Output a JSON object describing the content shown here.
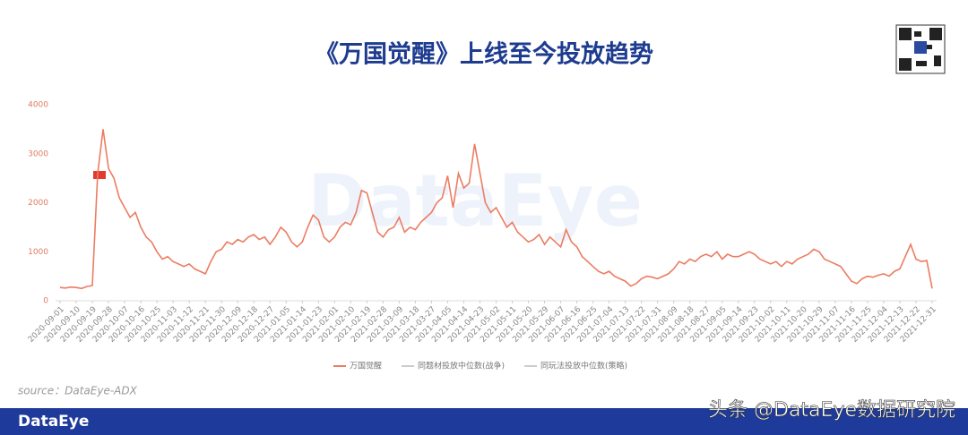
{
  "header": {
    "title": "《万国觉醒》上线至今投放趋势"
  },
  "chart_data": {
    "type": "line",
    "categories": [
      "2020-09-01",
      null,
      null,
      "2020-09-10",
      null,
      null,
      "2020-09-19",
      null,
      null,
      "2020-09-28",
      null,
      null,
      "2020-10-07",
      null,
      null,
      "2020-10-16",
      null,
      null,
      "2020-10-25",
      null,
      null,
      "2020-11-03",
      null,
      null,
      "2020-11-12",
      null,
      null,
      "2020-11-21",
      null,
      null,
      "2020-11-30",
      null,
      null,
      "2020-12-09",
      null,
      null,
      "2020-12-18",
      null,
      null,
      "2020-12-27",
      null,
      null,
      "2021-01-05",
      null,
      null,
      "2021-01-14",
      null,
      null,
      "2021-01-23",
      null,
      null,
      "2021-02-01",
      null,
      null,
      "2021-02-10",
      null,
      null,
      "2021-02-19",
      null,
      null,
      "2021-02-28",
      null,
      null,
      "2021-03-09",
      null,
      null,
      "2021-03-18",
      null,
      null,
      "2021-03-27",
      null,
      null,
      "2021-04-05",
      null,
      null,
      "2021-04-14",
      null,
      null,
      "2021-04-23",
      null,
      null,
      "2021-05-02",
      null,
      null,
      "2021-05-11",
      null,
      null,
      "2021-05-20",
      null,
      null,
      "2021-05-29",
      null,
      null,
      "2021-06-07",
      null,
      null,
      "2021-06-16",
      null,
      null,
      "2021-06-25",
      null,
      null,
      "2021-07-04",
      null,
      null,
      "2021-07-13",
      null,
      null,
      "2021-07-22",
      null,
      null,
      "2021-07-31",
      null,
      null,
      "2021-08-09",
      null,
      null,
      "2021-08-18",
      null,
      null,
      "2021-08-27",
      null,
      null,
      "2021-09-05",
      null,
      null,
      "2021-09-14",
      null,
      null,
      "2021-09-23",
      null,
      null,
      "2021-10-02",
      null,
      null,
      "2021-10-11",
      null,
      null,
      "2021-10-20",
      null,
      null,
      "2021-10-29",
      null,
      null,
      "2021-11-07",
      null,
      null,
      "2021-11-16",
      null,
      null,
      "2021-11-25",
      null,
      null,
      "2021-12-04",
      null,
      null,
      "2021-12-13",
      null,
      null,
      "2021-12-22",
      null,
      null,
      "2021-12-31"
    ],
    "series": [
      {
        "name": "万国觉醒",
        "color": "#ec7c62",
        "values": [
          270,
          260,
          280,
          270,
          250,
          290,
          310,
          2600,
          3500,
          2700,
          2500,
          2100,
          1900,
          1700,
          1800,
          1500,
          1300,
          1200,
          1000,
          850,
          900,
          800,
          750,
          700,
          750,
          650,
          600,
          550,
          800,
          1000,
          1050,
          1200,
          1150,
          1250,
          1200,
          1300,
          1350,
          1250,
          1300,
          1150,
          1300,
          1500,
          1400,
          1200,
          1100,
          1200,
          1500,
          1750,
          1650,
          1300,
          1200,
          1300,
          1500,
          1600,
          1550,
          1800,
          2250,
          2200,
          1800,
          1400,
          1300,
          1450,
          1500,
          1700,
          1400,
          1500,
          1450,
          1600,
          1700,
          1800,
          2000,
          2100,
          2550,
          1900,
          2600,
          2300,
          2400,
          3200,
          2600,
          2000,
          1800,
          1900,
          1700,
          1500,
          1600,
          1400,
          1300,
          1200,
          1250,
          1350,
          1150,
          1300,
          1200,
          1100,
          1450,
          1200,
          1100,
          900,
          800,
          700,
          600,
          550,
          600,
          500,
          450,
          400,
          300,
          350,
          450,
          500,
          480,
          450,
          500,
          550,
          650,
          800,
          750,
          850,
          800,
          900,
          950,
          900,
          1000,
          850,
          950,
          900,
          900,
          950,
          1000,
          950,
          850,
          800,
          750,
          800,
          700,
          800,
          750,
          850,
          900,
          950,
          1050,
          1000,
          850,
          800,
          750,
          700,
          550,
          400,
          350,
          450,
          500,
          480,
          520,
          550,
          500,
          600,
          650,
          900,
          1150,
          850,
          800,
          820,
          250
        ]
      }
    ],
    "legend_items": [
      {
        "name": "同题材投放中位数(战争)",
        "color": "#cccccc"
      },
      {
        "name": "同玩法投放中位数(策略)",
        "color": "#cccccc"
      }
    ],
    "ylim": [
      0,
      4000
    ],
    "yticks": [
      0,
      1000,
      2000,
      3000,
      4000
    ],
    "grid": false
  },
  "source": "source：DataEye-ADX",
  "footer": {
    "brand": "DataEye",
    "watermark": "头条 @DataEye数据研究院"
  }
}
